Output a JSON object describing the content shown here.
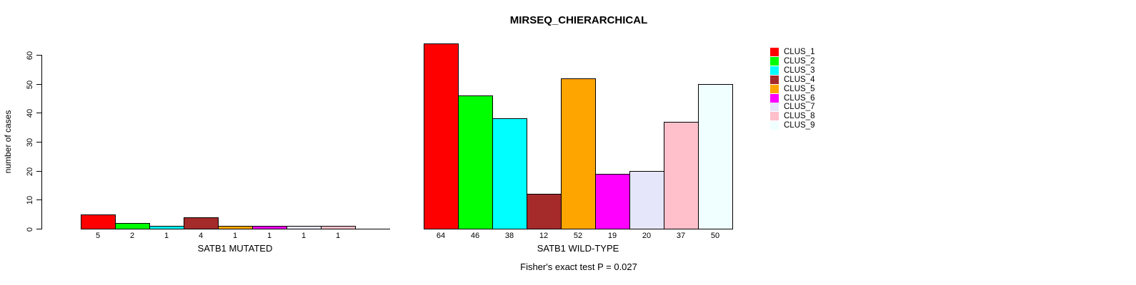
{
  "title": "MIRSEQ_CHIERARCHICAL",
  "chart_data": {
    "type": "bar",
    "title": "MIRSEQ_CHIERARCHICAL",
    "ylabel": "number of cases",
    "ylim": [
      0,
      60
    ],
    "yticks": [
      0,
      10,
      20,
      30,
      40,
      50,
      60
    ],
    "grid": false,
    "categories": [
      "CLUS_1",
      "CLUS_2",
      "CLUS_3",
      "CLUS_4",
      "CLUS_5",
      "CLUS_6",
      "CLUS_7",
      "CLUS_8",
      "CLUS_9"
    ],
    "colors": [
      "#FF0000",
      "#00FF00",
      "#00FFFF",
      "#A52A2A",
      "#FFA500",
      "#FF00FF",
      "#E6E6FA",
      "#FFC0CB",
      "#F0FFFF"
    ],
    "groups": [
      {
        "xlabel": "SATB1 MUTATED",
        "values": [
          5,
          2,
          1,
          4,
          1,
          1,
          1,
          1,
          0
        ]
      },
      {
        "xlabel": "SATB1 WILD-TYPE",
        "values": [
          64,
          46,
          38,
          12,
          52,
          19,
          20,
          37,
          50
        ]
      }
    ],
    "legend": {
      "position": "right",
      "entries": [
        "CLUS_1",
        "CLUS_2",
        "CLUS_3",
        "CLUS_4",
        "CLUS_5",
        "CLUS_6",
        "CLUS_7",
        "CLUS_8",
        "CLUS_9"
      ]
    },
    "annotation": "Fisher's exact test P = 0.027"
  }
}
